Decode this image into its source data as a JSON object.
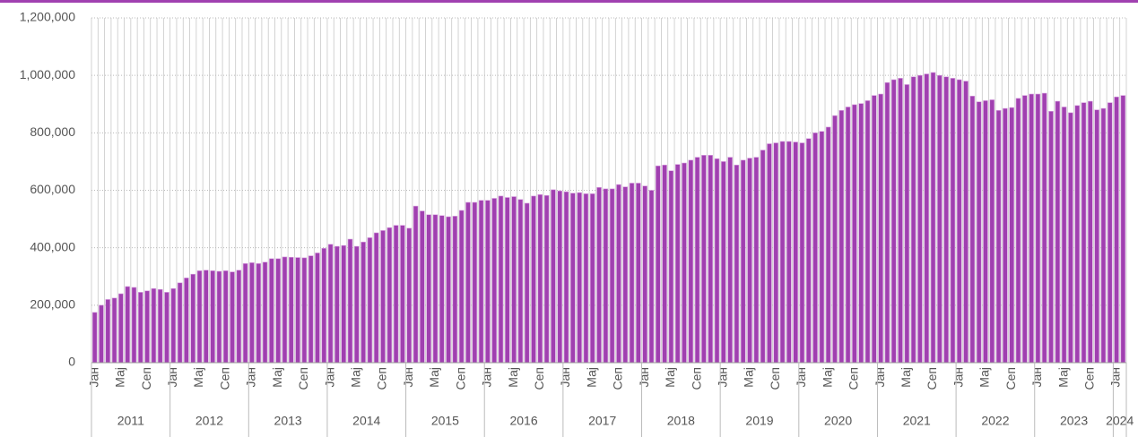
{
  "chart_data": {
    "type": "bar",
    "color": "#a040b0",
    "grid": true,
    "ylim": [
      0,
      1200000
    ],
    "yticks": [
      0,
      {
        "value": 200000,
        "label": "200,000"
      },
      {
        "value": 400000,
        "label": "400,000"
      },
      {
        "value": 600000,
        "label": "600,000"
      },
      {
        "value": 800000,
        "label": "800,000"
      },
      {
        "value": 1000000,
        "label": "1,000,000"
      },
      {
        "value": 1200000,
        "label": "1,200,000"
      }
    ],
    "categories": [
      "Јан",
      null,
      null,
      null,
      "Мај",
      null,
      null,
      null,
      "Сеп",
      null,
      null,
      null,
      "Јан",
      null,
      null,
      null,
      "Мај",
      null,
      null,
      null,
      "Сеп",
      null,
      null,
      null,
      "Јан",
      null,
      null,
      null,
      "Мај",
      null,
      null,
      null,
      "Сеп",
      null,
      null,
      null,
      "Јан",
      null,
      null,
      null,
      "Мај",
      null,
      null,
      null,
      "Сеп",
      null,
      null,
      null,
      "Јан",
      null,
      null,
      null,
      "Мај",
      null,
      null,
      null,
      "Сеп",
      null,
      null,
      null,
      "Јан",
      null,
      null,
      null,
      "Мај",
      null,
      null,
      null,
      "Сеп",
      null,
      null,
      null,
      "Јан",
      null,
      null,
      null,
      "Мај",
      null,
      null,
      null,
      "Сеп",
      null,
      null,
      null,
      "Јан",
      null,
      null,
      null,
      "Мај",
      null,
      null,
      null,
      "Сеп",
      null,
      null,
      null,
      "Јан",
      null,
      null,
      null,
      "Мај",
      null,
      null,
      null,
      "Сеп",
      null,
      null,
      null,
      "Јан",
      null,
      null,
      null,
      "Мај",
      null,
      null,
      null,
      "Сеп",
      null,
      null,
      null,
      "Јан",
      null,
      null,
      null,
      "Мај",
      null,
      null,
      null,
      "Сеп",
      null,
      null,
      null,
      "Јан",
      null,
      null,
      null,
      "Мај",
      null,
      null,
      null,
      "Сеп",
      null,
      null,
      null,
      "Јан",
      null,
      null,
      null,
      "Мај",
      null,
      null,
      null,
      "Сеп",
      null,
      null,
      null,
      "Јан",
      null
    ],
    "x_groups": [
      {
        "label": "2011",
        "months": 12
      },
      {
        "label": "2012",
        "months": 12
      },
      {
        "label": "2013",
        "months": 12
      },
      {
        "label": "2014",
        "months": 12
      },
      {
        "label": "2015",
        "months": 12
      },
      {
        "label": "2016",
        "months": 12
      },
      {
        "label": "2017",
        "months": 12
      },
      {
        "label": "2018",
        "months": 12
      },
      {
        "label": "2019",
        "months": 12
      },
      {
        "label": "2020",
        "months": 12
      },
      {
        "label": "2021",
        "months": 12
      },
      {
        "label": "2022",
        "months": 12
      },
      {
        "label": "2023",
        "months": 12
      },
      {
        "label": "2024",
        "months": 2
      }
    ],
    "values": [
      175000,
      200000,
      220000,
      225000,
      240000,
      265000,
      262000,
      245000,
      250000,
      258000,
      255000,
      245000,
      258000,
      278000,
      295000,
      308000,
      320000,
      322000,
      320000,
      318000,
      320000,
      316000,
      322000,
      345000,
      348000,
      345000,
      350000,
      362000,
      362000,
      368000,
      367000,
      366000,
      365000,
      372000,
      382000,
      398000,
      412000,
      405000,
      408000,
      430000,
      405000,
      420000,
      435000,
      452000,
      460000,
      470000,
      478000,
      478000,
      468000,
      545000,
      528000,
      515000,
      515000,
      512000,
      508000,
      510000,
      530000,
      558000,
      558000,
      565000,
      565000,
      572000,
      580000,
      575000,
      578000,
      568000,
      555000,
      580000,
      585000,
      582000,
      602000,
      598000,
      595000,
      590000,
      592000,
      588000,
      588000,
      610000,
      605000,
      605000,
      620000,
      612000,
      625000,
      625000,
      615000,
      600000,
      685000,
      688000,
      668000,
      690000,
      695000,
      705000,
      715000,
      722000,
      722000,
      710000,
      700000,
      715000,
      688000,
      705000,
      712000,
      715000,
      740000,
      762000,
      765000,
      770000,
      770000,
      768000,
      765000,
      780000,
      800000,
      805000,
      820000,
      860000,
      878000,
      890000,
      898000,
      902000,
      912000,
      930000,
      935000,
      975000,
      985000,
      990000,
      968000,
      995000,
      1000000,
      1005000,
      1010000,
      1000000,
      995000,
      990000,
      985000,
      980000,
      928000,
      908000,
      912000,
      915000,
      878000,
      885000,
      888000,
      920000,
      930000,
      935000,
      935000,
      938000,
      875000,
      910000,
      890000,
      870000,
      895000,
      905000,
      910000,
      880000,
      885000,
      905000,
      925000,
      930000
    ]
  }
}
